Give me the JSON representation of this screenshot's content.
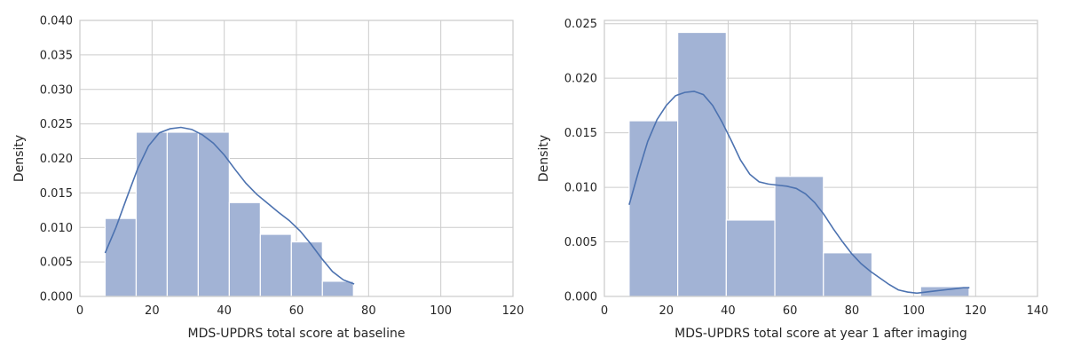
{
  "colors": {
    "bar_fill": "#a2b3d5",
    "line": "#4c72b0",
    "grid": "#cccccc",
    "text": "#262626"
  },
  "chart_data": [
    {
      "type": "bar",
      "subtype": "histogram-with-kde",
      "xlabel": "MDS-UPDRS total score at baseline",
      "ylabel": "Density",
      "xlim": [
        0,
        120
      ],
      "ylim": [
        0,
        0.04
      ],
      "xticks": [
        0,
        20,
        40,
        60,
        80,
        100,
        120
      ],
      "yticks": [
        0.0,
        0.005,
        0.01,
        0.015,
        0.02,
        0.025,
        0.03,
        0.035,
        0.04
      ],
      "ytick_decimals": 3,
      "grid": true,
      "bins": [
        {
          "x0": 7.0,
          "x1": 15.6,
          "density": 0.0113
        },
        {
          "x0": 15.6,
          "x1": 24.2,
          "density": 0.0238
        },
        {
          "x0": 24.2,
          "x1": 32.8,
          "density": 0.0238
        },
        {
          "x0": 32.8,
          "x1": 41.4,
          "density": 0.0238
        },
        {
          "x0": 41.4,
          "x1": 50.0,
          "density": 0.0136
        },
        {
          "x0": 50.0,
          "x1": 58.6,
          "density": 0.009
        },
        {
          "x0": 58.6,
          "x1": 67.2,
          "density": 0.0079
        },
        {
          "x0": 67.2,
          "x1": 75.8,
          "density": 0.0022
        }
      ],
      "kde": [
        [
          7,
          0.0063
        ],
        [
          10,
          0.01
        ],
        [
          13,
          0.0143
        ],
        [
          16,
          0.0185
        ],
        [
          19,
          0.0218
        ],
        [
          22,
          0.0237
        ],
        [
          25,
          0.0243
        ],
        [
          28,
          0.0245
        ],
        [
          31,
          0.0242
        ],
        [
          34,
          0.0234
        ],
        [
          37,
          0.0222
        ],
        [
          40,
          0.0205
        ],
        [
          43,
          0.0184
        ],
        [
          46,
          0.0164
        ],
        [
          49,
          0.0148
        ],
        [
          52,
          0.0135
        ],
        [
          55,
          0.0122
        ],
        [
          58,
          0.011
        ],
        [
          61,
          0.0095
        ],
        [
          64,
          0.0076
        ],
        [
          67,
          0.0055
        ],
        [
          70,
          0.0036
        ],
        [
          73,
          0.0024
        ],
        [
          76,
          0.0018
        ]
      ]
    },
    {
      "type": "bar",
      "subtype": "histogram-with-kde",
      "xlabel": "MDS-UPDRS total score at year 1 after imaging",
      "ylabel": "Density",
      "xlim": [
        0,
        140
      ],
      "ylim": [
        0,
        0.0253
      ],
      "xticks": [
        0,
        20,
        40,
        60,
        80,
        100,
        120,
        140
      ],
      "yticks": [
        0.0,
        0.005,
        0.01,
        0.015,
        0.02,
        0.025
      ],
      "ytick_decimals": 3,
      "grid": true,
      "bins": [
        {
          "x0": 8.0,
          "x1": 23.7,
          "density": 0.0161
        },
        {
          "x0": 23.7,
          "x1": 39.4,
          "density": 0.0242
        },
        {
          "x0": 39.4,
          "x1": 55.1,
          "density": 0.007
        },
        {
          "x0": 55.1,
          "x1": 70.8,
          "density": 0.011
        },
        {
          "x0": 70.8,
          "x1": 86.5,
          "density": 0.004
        },
        {
          "x0": 86.5,
          "x1": 102.2,
          "density": 0.0
        },
        {
          "x0": 102.2,
          "x1": 117.9,
          "density": 0.0009
        }
      ],
      "kde": [
        [
          8,
          0.0084
        ],
        [
          11,
          0.0114
        ],
        [
          14,
          0.0142
        ],
        [
          17,
          0.0162
        ],
        [
          20,
          0.0175
        ],
        [
          23,
          0.0184
        ],
        [
          26,
          0.0187
        ],
        [
          29,
          0.0188
        ],
        [
          32,
          0.0185
        ],
        [
          35,
          0.0175
        ],
        [
          38,
          0.016
        ],
        [
          41,
          0.0143
        ],
        [
          44,
          0.0125
        ],
        [
          47,
          0.0112
        ],
        [
          50,
          0.0105
        ],
        [
          53,
          0.0103
        ],
        [
          56,
          0.0102
        ],
        [
          59,
          0.0101
        ],
        [
          62,
          0.0099
        ],
        [
          65,
          0.0094
        ],
        [
          68,
          0.0086
        ],
        [
          71,
          0.0075
        ],
        [
          74,
          0.0062
        ],
        [
          77,
          0.005
        ],
        [
          80,
          0.0039
        ],
        [
          83,
          0.003
        ],
        [
          86,
          0.0023
        ],
        [
          89,
          0.0017
        ],
        [
          92,
          0.0011
        ],
        [
          95,
          0.0006
        ],
        [
          98,
          0.0004
        ],
        [
          101,
          0.0003
        ],
        [
          104,
          0.0004
        ],
        [
          107,
          0.0005
        ],
        [
          110,
          0.0006
        ],
        [
          113,
          0.0007
        ],
        [
          116,
          0.0008
        ],
        [
          118,
          0.0008
        ]
      ]
    }
  ]
}
